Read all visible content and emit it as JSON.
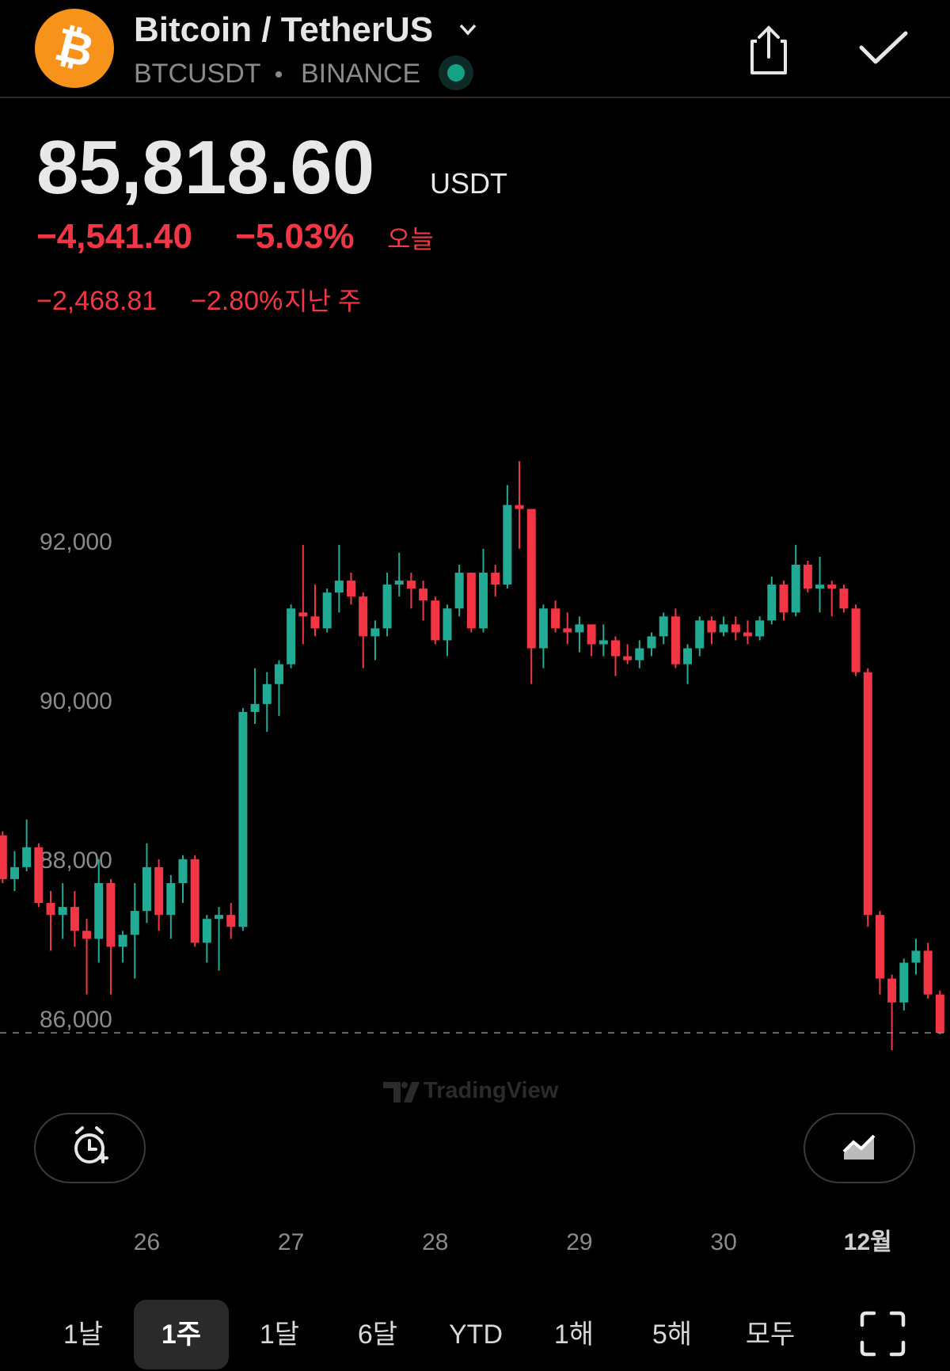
{
  "header": {
    "title": "Bitcoin / TetherUS",
    "symbol": "BTCUSDT",
    "separator": "•",
    "exchange": "BINANCE",
    "price": "85,818.60",
    "currency": "USDT",
    "change_today": "−4,541.40",
    "change_today_pct": "−5.03%",
    "today_label": "오늘",
    "change_week": "−2,468.81",
    "change_week_pct": "−2.80%",
    "week_label": "지난 주"
  },
  "watermark": "TradingView",
  "periods": {
    "items": [
      "1날",
      "1주",
      "1달",
      "6달",
      "YTD",
      "1해",
      "5해",
      "모두"
    ],
    "selected": 1
  },
  "chart_data": {
    "type": "candlestick",
    "categories": [
      null,
      null,
      null,
      null,
      null,
      null,
      null,
      null,
      null,
      null,
      null,
      null,
      "26",
      null,
      null,
      null,
      null,
      null,
      null,
      null,
      null,
      null,
      null,
      null,
      "27",
      null,
      null,
      null,
      null,
      null,
      null,
      null,
      null,
      null,
      null,
      null,
      "28",
      null,
      null,
      null,
      null,
      null,
      null,
      null,
      null,
      null,
      null,
      null,
      "29",
      null,
      null,
      null,
      null,
      null,
      null,
      null,
      null,
      null,
      null,
      null,
      "30",
      null,
      null,
      null,
      null,
      null,
      null,
      null,
      null,
      null,
      null,
      null,
      "12월",
      null,
      null,
      null,
      null,
      null,
      null
    ],
    "open": [
      88300,
      87750,
      87900,
      88150,
      87450,
      87300,
      87400,
      87100,
      87000,
      87700,
      86900,
      87050,
      87350,
      87900,
      87300,
      87700,
      88000,
      86950,
      87250,
      87300,
      87150,
      89850,
      89950,
      90200,
      90450,
      91100,
      91050,
      90900,
      91350,
      91500,
      91300,
      90800,
      90900,
      91450,
      91500,
      91400,
      91250,
      90750,
      91150,
      91600,
      90900,
      91600,
      91450,
      92450,
      92400,
      90650,
      91150,
      90900,
      90850,
      90950,
      90700,
      90750,
      90550,
      90500,
      90650,
      90800,
      91050,
      90450,
      90650,
      91000,
      90850,
      90950,
      90850,
      90800,
      91000,
      91450,
      91100,
      91700,
      91400,
      91450,
      91400,
      91150,
      90350,
      87300,
      86500,
      86200,
      86700,
      86850,
      86300
    ],
    "high": [
      88350,
      88100,
      88500,
      88200,
      87600,
      87700,
      87600,
      87250,
      88000,
      87750,
      87100,
      87700,
      88200,
      88000,
      87800,
      88050,
      88050,
      87300,
      87400,
      87450,
      89900,
      90400,
      90350,
      90500,
      91200,
      91950,
      91450,
      91400,
      91950,
      91600,
      91350,
      91000,
      91600,
      91850,
      91600,
      91500,
      91300,
      91200,
      91700,
      91600,
      91900,
      91700,
      92700,
      93000,
      92400,
      91200,
      91250,
      91100,
      91050,
      90950,
      90950,
      90800,
      90700,
      90750,
      90850,
      91100,
      91150,
      90700,
      91050,
      91050,
      91050,
      91050,
      91000,
      91050,
      91550,
      91500,
      91950,
      91750,
      91800,
      91500,
      91450,
      91200,
      90400,
      87350,
      86550,
      86750,
      87000,
      86950,
      86350
    ],
    "low": [
      87700,
      87600,
      87850,
      87400,
      86850,
      87000,
      86900,
      86300,
      86700,
      86300,
      86700,
      86500,
      87200,
      87100,
      87000,
      87450,
      86900,
      86700,
      86600,
      87000,
      87100,
      89700,
      89600,
      89800,
      90400,
      90700,
      90800,
      90850,
      91100,
      91200,
      90400,
      90500,
      90800,
      91300,
      91150,
      91000,
      90700,
      90550,
      91050,
      90850,
      90850,
      91300,
      91400,
      91900,
      90200,
      90400,
      90850,
      90700,
      90600,
      90550,
      90550,
      90300,
      90450,
      90400,
      90550,
      90700,
      90400,
      90200,
      90550,
      90700,
      90800,
      90750,
      90700,
      90750,
      90950,
      91000,
      91050,
      91350,
      91100,
      91050,
      91100,
      90300,
      87150,
      86300,
      85600,
      86100,
      86550,
      86250,
      85800
    ],
    "close": [
      87750,
      87900,
      88150,
      87450,
      87300,
      87400,
      87100,
      87000,
      87700,
      86900,
      87050,
      87350,
      87900,
      87300,
      87700,
      88000,
      86950,
      87250,
      87300,
      87150,
      89850,
      89950,
      90200,
      90450,
      91150,
      91050,
      90900,
      91350,
      91500,
      91300,
      90800,
      90900,
      91450,
      91500,
      91400,
      91250,
      90750,
      91150,
      91600,
      90900,
      91600,
      91450,
      92450,
      92400,
      90650,
      91150,
      90900,
      90850,
      90950,
      90700,
      90750,
      90550,
      90500,
      90650,
      90800,
      91050,
      90450,
      90650,
      91000,
      90850,
      90950,
      90850,
      90800,
      91000,
      91450,
      91100,
      91700,
      91400,
      91450,
      91400,
      91150,
      90350,
      87300,
      86500,
      86200,
      86700,
      86850,
      86300,
      85818.6
    ],
    "up_color": "#22ab94",
    "down_color": "#f23645",
    "ylim": [
      85600,
      93700
    ],
    "yticks": [
      {
        "value": 86000,
        "label": "86,000"
      },
      {
        "value": 88000,
        "label": "88,000"
      },
      {
        "value": 90000,
        "label": "90,000"
      },
      {
        "value": 92000,
        "label": "92,000"
      }
    ],
    "grid": false,
    "last_price_line": true
  }
}
